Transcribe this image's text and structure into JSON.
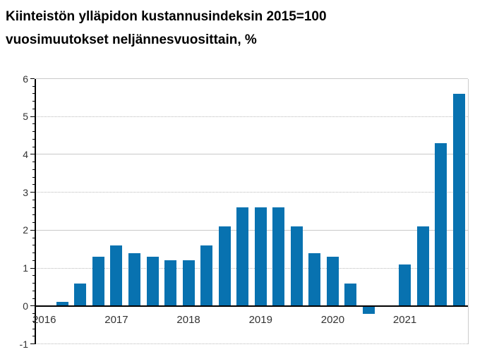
{
  "title": {
    "line1": "Kiinteistön ylläpidon kustannusindeksin 2015=100",
    "line2": "vuosimuutokset neljännesvuosittain, %"
  },
  "chart_data": {
    "type": "bar",
    "title": "Kiinteistön ylläpidon kustannusindeksin 2015=100 vuosimuutokset neljännesvuosittain, %",
    "xlabel": "",
    "ylabel": "",
    "categories": [
      "2016Q1",
      "2016Q2",
      "2016Q3",
      "2016Q4",
      "2017Q1",
      "2017Q2",
      "2017Q3",
      "2017Q4",
      "2018Q1",
      "2018Q2",
      "2018Q3",
      "2018Q4",
      "2019Q1",
      "2019Q2",
      "2019Q3",
      "2019Q4",
      "2020Q1",
      "2020Q2",
      "2020Q3",
      "2020Q4",
      "2021Q1",
      "2021Q2",
      "2021Q3",
      "2021Q4"
    ],
    "values": [
      0.0,
      0.1,
      0.6,
      1.3,
      1.6,
      1.4,
      1.3,
      1.2,
      1.2,
      1.6,
      2.1,
      2.6,
      2.6,
      2.6,
      2.1,
      1.4,
      1.3,
      0.6,
      -0.2,
      0.0,
      1.1,
      2.1,
      4.3,
      5.6
    ],
    "ylim": [
      -1,
      6
    ],
    "yticks": [
      6,
      5,
      4,
      3,
      2,
      1,
      0,
      -1
    ],
    "y_minor_step": 0.2,
    "x_tick_labels": [
      "2016",
      "2017",
      "2018",
      "2019",
      "2020",
      "2021"
    ],
    "grid": "horizontal",
    "legend": "none",
    "bar_color": "#0872b0",
    "axis_label_color": "#333333",
    "gridline_solid_color": "#c9c9c9",
    "gridline_dotted_color": "#b9b9b9"
  }
}
